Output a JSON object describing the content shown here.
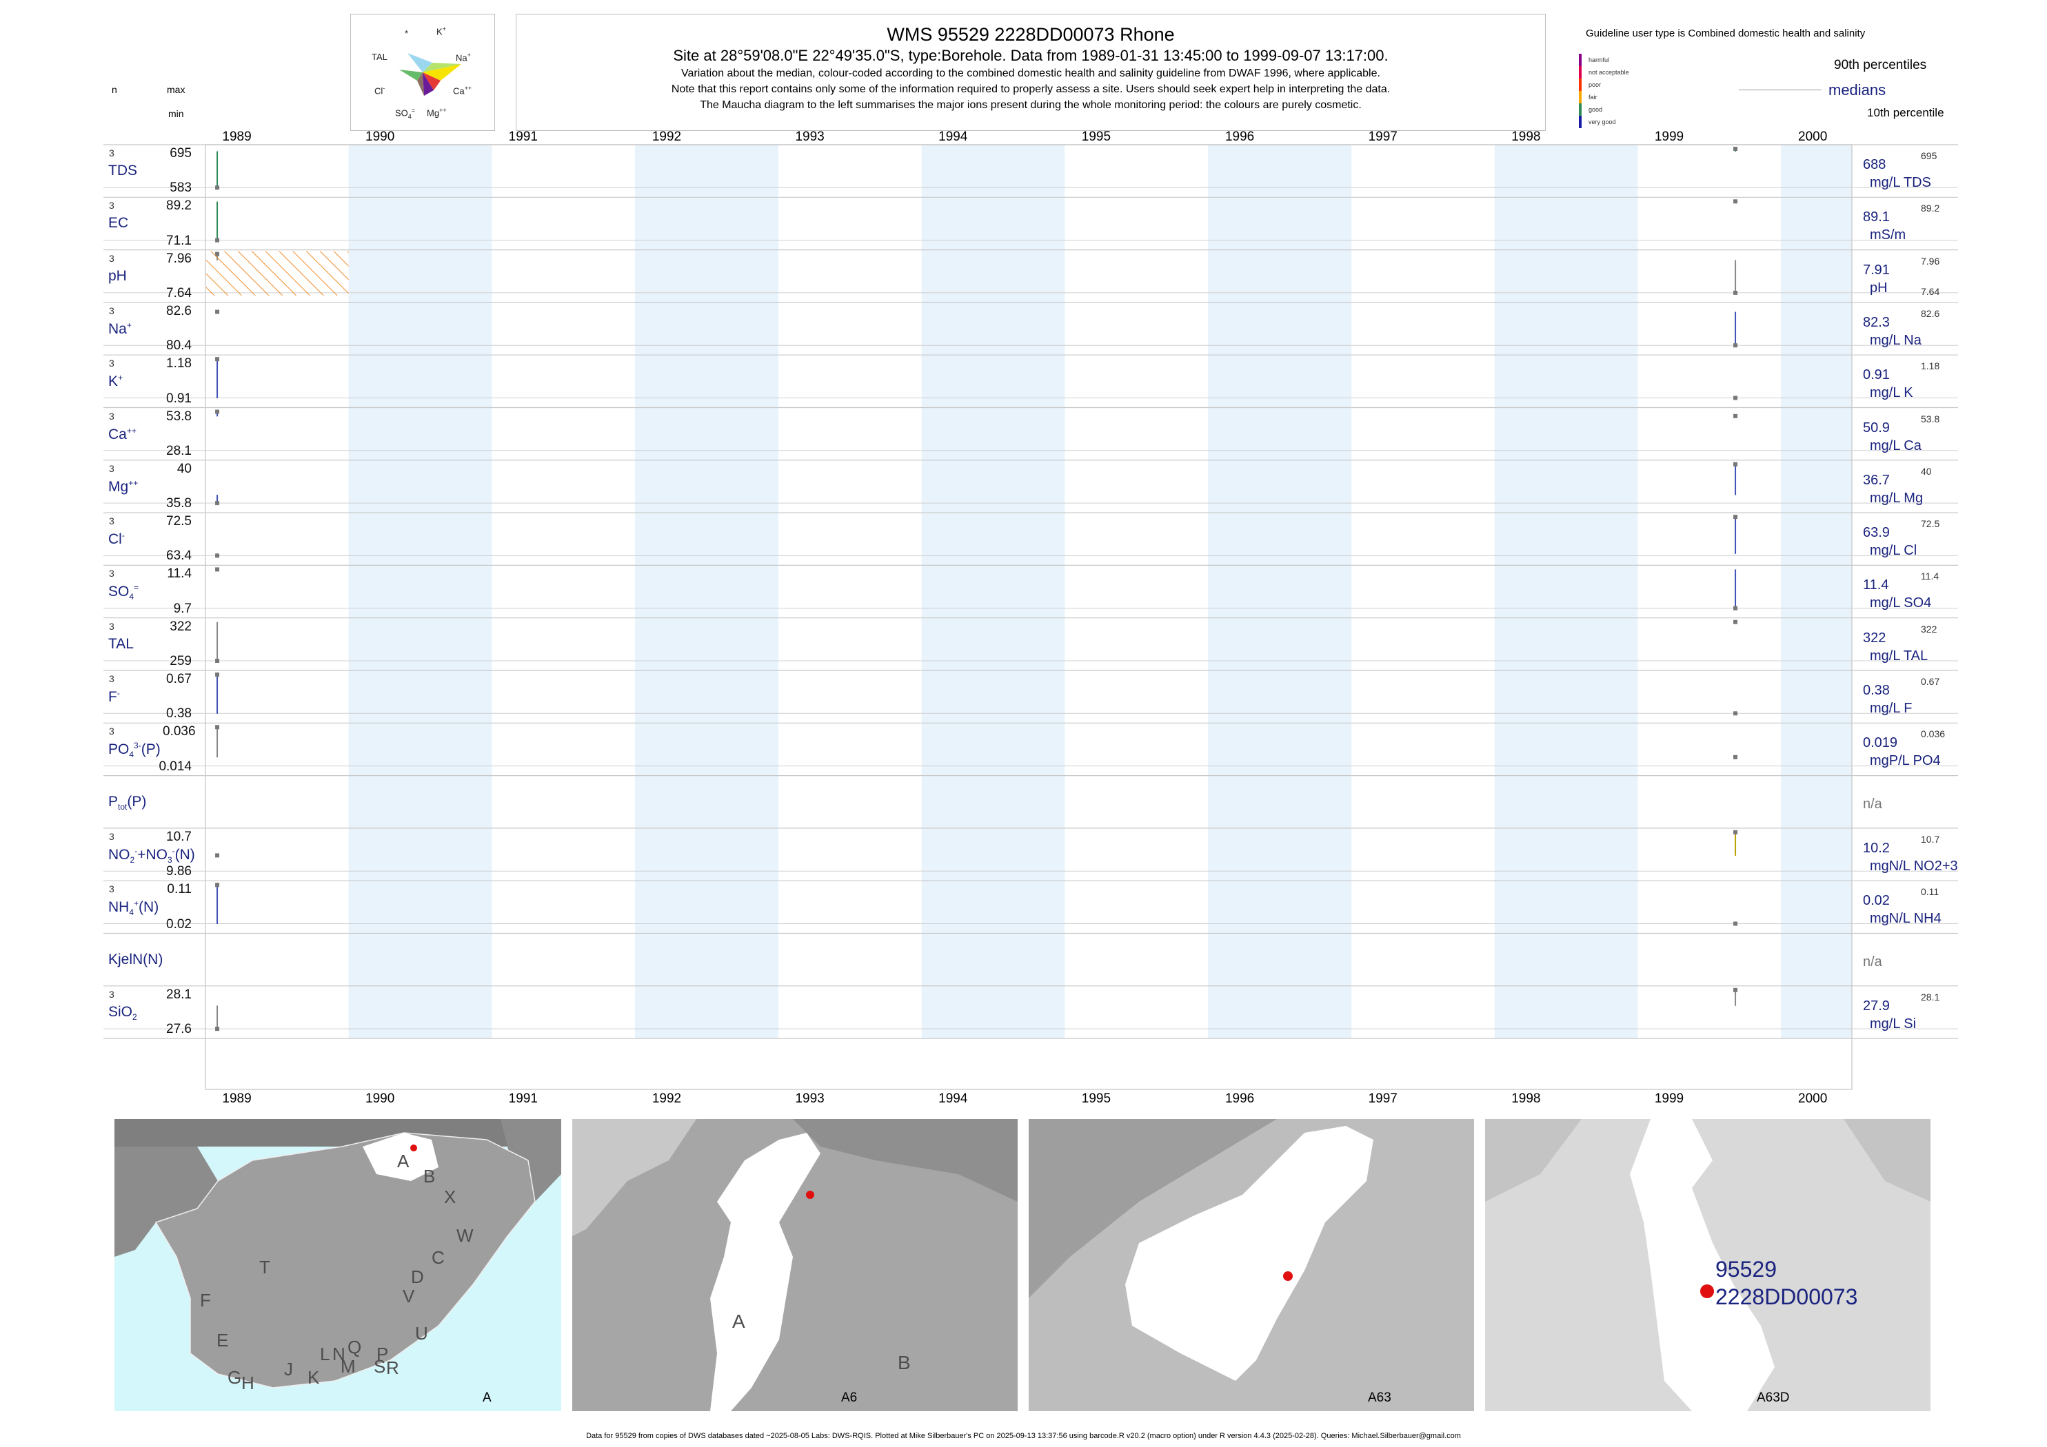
{
  "header": {
    "title": "WMS 95529 2228DD00073 Rhone",
    "subtitle": "Site at 28°59'08.0\"E 22°49'35.0\"S, type:Borehole.  Data from 1989-01-31 13:45:00 to 1999-09-07 13:17:00.",
    "note1": "Variation about the median,  colour-coded according to the combined domestic health and salinity guideline from DWAF 1996, where applicable.",
    "note2": "Note that this report contains only some of the information required to properly assess a site. Users should seek expert help in interpreting the data.",
    "note3": "The Maucha diagram to the left summarises the major ions present during the whole monitoring period: the colours are purely cosmetic."
  },
  "maucha": {
    "labels": {
      "star": "*",
      "k": "K",
      "tal": "TAL",
      "na": "Na",
      "cl": "Cl",
      "ca": "Ca",
      "so4": "SO",
      "mg": "Mg"
    }
  },
  "col_headers": {
    "n": "n",
    "max": "max",
    "min": "min"
  },
  "legend": {
    "guideline": "Guideline user type is Combined domestic health and salinity",
    "categories": [
      {
        "label": "harmful",
        "color": "#8b008b"
      },
      {
        "label": "not acceptable",
        "color": "#e0004e"
      },
      {
        "label": "poor",
        "color": "#ff3300"
      },
      {
        "label": "fair",
        "color": "#ffa500"
      },
      {
        "label": "good",
        "color": "#2e8b57"
      },
      {
        "label": "very good",
        "color": "#1a1aa6"
      }
    ],
    "p90": "90th percentiles",
    "medians": "medians",
    "p10": "10th percentile"
  },
  "years": [
    "1989",
    "1990",
    "1991",
    "1992",
    "1993",
    "1994",
    "1995",
    "1996",
    "1997",
    "1998",
    "1999",
    "2000"
  ],
  "chart_data": {
    "type": "line",
    "x_range": [
      "1989-01-01",
      "2000-06-30"
    ],
    "variables": [
      {
        "key": "tds",
        "name": "TDS",
        "n": "3",
        "max": "695",
        "min": "583",
        "median": "688",
        "unit": "mg/L TDS",
        "rmax": "695",
        "rmin": "",
        "samples": [
          {
            "date": "1989-01-31",
            "value": 583
          },
          {
            "date": "1999-09-07",
            "value": 695
          }
        ],
        "status": "good"
      },
      {
        "key": "ec",
        "name": "EC",
        "n": "3",
        "max": "89.2",
        "min": "71.1",
        "median": "89.1",
        "unit": "mS/m",
        "rmax": "89.2",
        "rmin": "",
        "samples": [
          {
            "date": "1989-01-31",
            "value": 71.1
          },
          {
            "date": "1999-09-07",
            "value": 89.2
          }
        ],
        "status": "good"
      },
      {
        "key": "ph",
        "name": "pH",
        "n": "3",
        "max": "7.96",
        "min": "7.64",
        "median": "7.91",
        "unit": "pH",
        "rmax": "7.96",
        "rmin": "7.64",
        "samples": [
          {
            "date": "1989-01-31",
            "value": 7.96
          },
          {
            "date": "1999-09-07",
            "value": 7.64
          }
        ],
        "status": "neutral"
      },
      {
        "key": "na",
        "name": "Na",
        "sup": "+",
        "n": "3",
        "max": "82.6",
        "min": "80.4",
        "median": "82.3",
        "unit": "mg/L Na",
        "rmax": "82.6",
        "rmin": "",
        "samples": [
          {
            "date": "1989-01-31",
            "value": 82.3
          },
          {
            "date": "1999-09-07",
            "value": 80.4
          }
        ],
        "status": "very good"
      },
      {
        "key": "k",
        "name": "K",
        "sup": "+",
        "n": "3",
        "max": "1.18",
        "min": "0.91",
        "median": "0.91",
        "unit": "mg/L K",
        "rmax": "1.18",
        "rmin": "",
        "samples": [
          {
            "date": "1989-01-31",
            "value": 1.18
          },
          {
            "date": "1999-09-07",
            "value": 0.91
          }
        ],
        "status": "very good"
      },
      {
        "key": "ca",
        "name": "Ca",
        "sup": "++",
        "n": "3",
        "max": "53.8",
        "min": "28.1",
        "median": "50.9",
        "unit": "mg/L Ca",
        "rmax": "53.8",
        "rmin": "",
        "samples": [
          {
            "date": "1989-01-31",
            "value": 53.8
          },
          {
            "date": "1999-09-07",
            "value": 50.9
          }
        ],
        "status": "very good"
      },
      {
        "key": "mg",
        "name": "Mg",
        "sup": "++",
        "n": "3",
        "max": "40",
        "min": "35.8",
        "median": "36.7",
        "unit": "mg/L Mg",
        "rmax": "40",
        "rmin": "",
        "samples": [
          {
            "date": "1989-01-31",
            "value": 35.8
          },
          {
            "date": "1999-09-07",
            "value": 40
          }
        ],
        "status": "very good"
      },
      {
        "key": "cl",
        "name": "Cl",
        "sup": "-",
        "n": "3",
        "max": "72.5",
        "min": "63.4",
        "median": "63.9",
        "unit": "mg/L Cl",
        "rmax": "72.5",
        "rmin": "",
        "samples": [
          {
            "date": "1989-01-31",
            "value": 63.4
          },
          {
            "date": "1999-09-07",
            "value": 72.5
          }
        ],
        "status": "very good"
      },
      {
        "key": "so4",
        "name": "SO",
        "sub": "4",
        "sup": "=",
        "n": "3",
        "max": "11.4",
        "min": "9.7",
        "median": "11.4",
        "unit": "mg/L SO4",
        "rmax": "11.4",
        "rmin": "",
        "samples": [
          {
            "date": "1989-01-31",
            "value": 11.4
          },
          {
            "date": "1999-09-07",
            "value": 9.7
          }
        ],
        "status": "very good"
      },
      {
        "key": "tal",
        "name": "TAL",
        "n": "3",
        "max": "322",
        "min": "259",
        "median": "322",
        "unit": "mg/L TAL",
        "rmax": "322",
        "rmin": "",
        "samples": [
          {
            "date": "1989-01-31",
            "value": 259
          },
          {
            "date": "1999-09-07",
            "value": 322
          }
        ],
        "status": "neutral"
      },
      {
        "key": "f",
        "name": "F",
        "sup": "-",
        "n": "3",
        "max": "0.67",
        "min": "0.38",
        "median": "0.38",
        "unit": "mg/L F",
        "rmax": "0.67",
        "rmin": "",
        "samples": [
          {
            "date": "1989-01-31",
            "value": 0.67
          },
          {
            "date": "1999-09-07",
            "value": 0.38
          }
        ],
        "status": "very good"
      },
      {
        "key": "po4",
        "name": "PO",
        "sub": "4",
        "sup": "3-",
        "suffix": "(P)",
        "n": "3",
        "max": "0.036",
        "min": "0.014",
        "median": "0.019",
        "unit": "mgP/L PO4",
        "rmax": "0.036",
        "rmin": "",
        "samples": [
          {
            "date": "1989-01-31",
            "value": 0.036
          },
          {
            "date": "1999-09-07",
            "value": 0.019
          }
        ],
        "status": "neutral"
      },
      {
        "key": "ptot",
        "name": "P",
        "sub": "tot",
        "suffix": "(P)",
        "n": "",
        "max": "",
        "min": "",
        "median": "n/a",
        "unit": "",
        "rmax": "",
        "rmin": "",
        "samples": [],
        "status": "none"
      },
      {
        "key": "no23",
        "name": "NO",
        "sub": "2",
        "sup": "-",
        "extra": "+NO",
        "extra_sub": "3",
        "extra_sup": "-",
        "suffix": "(N)",
        "n": "3",
        "max": "10.7",
        "min": "9.86",
        "median": "10.2",
        "unit": "mgN/L NO2+3",
        "rmax": "10.7",
        "rmin": "",
        "samples": [
          {
            "date": "1989-01-31",
            "value": 10.2
          },
          {
            "date": "1999-09-07",
            "value": 10.7
          }
        ],
        "status": "fair"
      },
      {
        "key": "nh4",
        "name": "NH",
        "sub": "4",
        "sup": "+",
        "suffix": "(N)",
        "n": "3",
        "max": "0.11",
        "min": "0.02",
        "median": "0.02",
        "unit": "mgN/L NH4",
        "rmax": "0.11",
        "rmin": "",
        "samples": [
          {
            "date": "1989-01-31",
            "value": 0.11
          },
          {
            "date": "1999-09-07",
            "value": 0.02
          }
        ],
        "status": "very good"
      },
      {
        "key": "kjeln",
        "name": "KjelN(N)",
        "n": "",
        "max": "",
        "min": "",
        "median": "n/a",
        "unit": "",
        "rmax": "",
        "rmin": "",
        "samples": [],
        "status": "none"
      },
      {
        "key": "sio2",
        "name": "SiO",
        "sub": "2",
        "n": "3",
        "max": "28.1",
        "min": "27.6",
        "median": "27.9",
        "unit": "mg/L Si",
        "rmax": "28.1",
        "rmin": "",
        "samples": [
          {
            "date": "1989-01-31",
            "value": 27.6
          },
          {
            "date": "1999-09-07",
            "value": 28.1
          }
        ],
        "status": "neutral"
      }
    ]
  },
  "maps": {
    "panel1": {
      "caption": "A",
      "regions": [
        "A",
        "B",
        "X",
        "W",
        "C",
        "D",
        "V",
        "U",
        "T",
        "F",
        "E",
        "G",
        "H",
        "J",
        "K",
        "L",
        "N",
        "M",
        "Q",
        "P",
        "S",
        "R"
      ]
    },
    "panel2": {
      "caption": "A6",
      "regions": [
        "A",
        "B"
      ]
    },
    "panel3": {
      "caption": "A63"
    },
    "panel4": {
      "caption": "A63D",
      "site_id": "95529",
      "site_code": "2228DD00073"
    }
  },
  "footer": "Data for 95529 from copies of DWS databases dated ~2025-08-05 Labs: DWS-RQIS. Plotted at Mike Silberbauer's PC on 2025-09-13 13:37:56 using barcode.R v20.2 (macro option) under R version 4.4.3 (2025-02-28). Queries: Michael.Silberbauer@gmail.com"
}
